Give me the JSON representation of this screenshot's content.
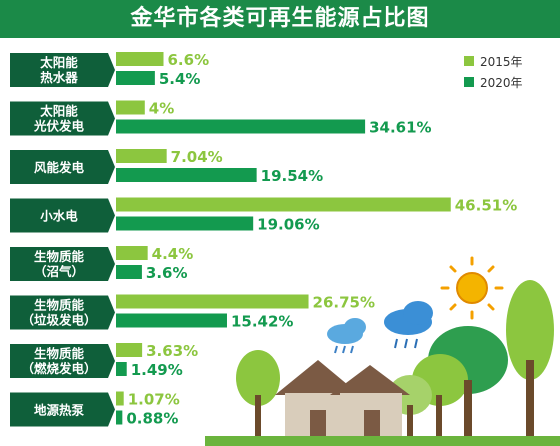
{
  "title": "金华市各类可再生能源占比图",
  "colors": {
    "s2015": "#8cc63f",
    "s2020": "#139a4f",
    "label_bg": "#0f5f3a",
    "title_bg": "#1b8a48"
  },
  "chart_data": {
    "type": "bar",
    "orientation": "horizontal",
    "title": "金华市各类可再生能源占比图",
    "categories": [
      [
        "太阳能",
        "热水器"
      ],
      [
        "太阳能",
        "光伏发电"
      ],
      [
        "风能发电"
      ],
      [
        "小水电"
      ],
      [
        "生物质能",
        "（沼气）"
      ],
      [
        "生物质能",
        "（垃圾发电）"
      ],
      [
        "生物质能",
        "（燃烧发电）"
      ],
      [
        "地源热泵"
      ]
    ],
    "series": [
      {
        "name": "2015年",
        "values": [
          6.6,
          4,
          7.04,
          46.51,
          4.4,
          26.75,
          3.63,
          1.07
        ],
        "labels": [
          "6.6%",
          "4%",
          "7.04%",
          "46.51%",
          "4.4%",
          "26.75%",
          "3.63%",
          "1.07%"
        ]
      },
      {
        "name": "2020年",
        "values": [
          5.4,
          34.61,
          19.54,
          19.06,
          3.6,
          15.42,
          1.49,
          0.88
        ],
        "labels": [
          "5.4%",
          "34.61%",
          "19.54%",
          "19.06%",
          "3.6%",
          "15.42%",
          "1.49%",
          "0.88%"
        ]
      }
    ],
    "xlim": [
      0,
      50
    ],
    "legend_position": "top-right"
  }
}
